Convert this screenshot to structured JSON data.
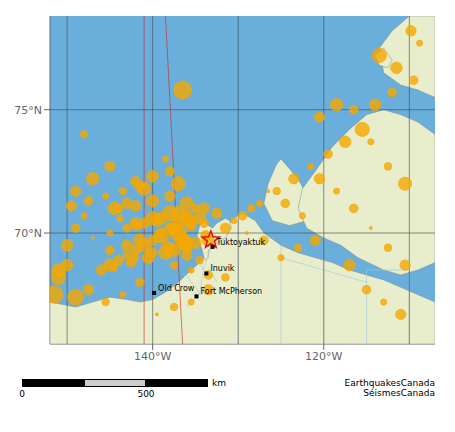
{
  "chart_data": {
    "type": "scatter",
    "color": "#6aaedb",
    "xlim": [
      -152,
      -107
    ],
    "ylim": [
      65.5,
      78.8
    ],
    "xticks": [
      {
        "value": -140,
        "label": "140°W"
      },
      {
        "value": -120,
        "label": "120°W"
      }
    ],
    "yticks": [
      {
        "value": 70,
        "label": "70°N"
      },
      {
        "value": 75,
        "label": "75°N"
      }
    ],
    "series": [
      {
        "type": "polygon",
        "color": "#e8edcb",
        "x": [
          -152,
          -107,
          -107,
          -109,
          -111,
          -113,
          -115,
          -117,
          -119,
          -121,
          -123,
          -125,
          -127,
          -128,
          -129.5,
          -130.5,
          -131.5,
          -132,
          -132.5,
          -133,
          -133.5,
          -134,
          -134.5,
          -135.5,
          -137,
          -138.5,
          -140,
          -141.5,
          -143,
          -145,
          -147,
          -149,
          -152
        ],
        "values": [
          65.5,
          65.5,
          67.2,
          67.5,
          67.8,
          68.1,
          68.3,
          68.5,
          68.8,
          69.0,
          69.2,
          69.5,
          70.0,
          70.5,
          70.8,
          70.6,
          70.2,
          70.0,
          69.8,
          69.6,
          69.3,
          69.0,
          68.8,
          68.5,
          68.0,
          67.6,
          67.3,
          67.2,
          67.3,
          67.4,
          67.2,
          67.0,
          67.2
        ]
      },
      {
        "type": "polygon",
        "color": "#e8edcb",
        "x": [
          -133.5,
          -133.0,
          -132.5,
          -131.5,
          -130.8,
          -131.0,
          -131.5,
          -132.0,
          -132.5,
          -133.0,
          -133.5,
          -134.0,
          -134.5,
          -134.8,
          -134.5,
          -134.2,
          -134.0,
          -133.8,
          -133.5
        ],
        "values": [
          69.3,
          69.4,
          69.6,
          69.8,
          70.2,
          70.5,
          70.6,
          70.5,
          70.4,
          70.2,
          70.3,
          70.5,
          70.3,
          69.9,
          69.6,
          69.3,
          69.0,
          68.9,
          69.0
        ]
      },
      {
        "type": "polygon",
        "color": "#e8edcb",
        "x": [
          -125,
          -123,
          -121.5,
          -122,
          -124,
          -126,
          -127,
          -126.5,
          -125.5
        ],
        "values": [
          73.0,
          72.2,
          71.2,
          70.5,
          70.3,
          70.5,
          71.2,
          72.0,
          72.8
        ]
      },
      {
        "type": "polygon",
        "color": "#e8edcb",
        "x": [
          -107,
          -107,
          -109,
          -111,
          -113,
          -115,
          -117,
          -119,
          -121,
          -122.5,
          -123,
          -122,
          -120,
          -118,
          -116,
          -113,
          -111,
          -109
        ],
        "values": [
          68.8,
          74.0,
          74.5,
          74.8,
          75.0,
          74.8,
          74.2,
          73.5,
          72.5,
          71.8,
          71.0,
          70.2,
          69.8,
          69.5,
          69.0,
          68.5,
          68.3,
          68.5
        ]
      },
      {
        "type": "polygon",
        "color": "#e8edcb",
        "x": [
          -107,
          -107,
          -110,
          -112,
          -113.5,
          -113,
          -111,
          -109
        ],
        "values": [
          75.5,
          78.8,
          78.8,
          78.2,
          77.5,
          76.5,
          76.0,
          75.8
        ]
      },
      {
        "type": "polygon",
        "color": "#e8edcb",
        "x": [
          -112,
          -113,
          -114,
          -113.5,
          -112.5
        ],
        "values": [
          77.0,
          77.5,
          77.2,
          76.8,
          76.7
        ]
      },
      {
        "type": "line",
        "color": "#9ecae1",
        "x": [
          -134.5,
          -134.3,
          -134.1,
          -133.8,
          -133.5,
          -133.2
        ],
        "values": [
          67.5,
          68.0,
          68.5,
          68.8,
          69.1,
          69.4
        ]
      },
      {
        "type": "line",
        "color": "#9ecae1",
        "x": [
          -134.5,
          -135.0,
          -135.5,
          -136.0
        ],
        "values": [
          67.5,
          67.8,
          68.0,
          68.3
        ]
      },
      {
        "type": "line",
        "color": "#9ecae1",
        "x": [
          -134.0,
          -134.5,
          -135.0
        ],
        "values": [
          68.5,
          68.8,
          69.0
        ]
      },
      {
        "type": "line",
        "color": "#9ecae1",
        "x": [
          -132.5,
          -133.0,
          -133.5
        ],
        "values": [
          68.0,
          68.3,
          68.6
        ]
      },
      {
        "type": "line",
        "color": "#9ecae1",
        "x": [
          -134.9,
          -135.5,
          -136.0
        ],
        "values": [
          67.4,
          67.2,
          67.0
        ]
      },
      {
        "type": "line",
        "color": "#9ecae1",
        "x": [
          -110,
          -110
        ],
        "values": [
          65.5,
          68.5
        ]
      },
      {
        "type": "line",
        "color": "#9ecae1",
        "x": [
          -115,
          -115
        ],
        "values": [
          65.5,
          68.5
        ]
      },
      {
        "type": "line",
        "color": "#9ecae1",
        "x": [
          -120,
          -120
        ],
        "values": [
          65.5,
          69.0
        ]
      },
      {
        "type": "line",
        "color": "#9ecae1",
        "x": [
          -125,
          -125
        ],
        "values": [
          65.5,
          69.5
        ]
      },
      {
        "type": "line",
        "color": "#9ecae1",
        "x": [
          -130,
          -130
        ],
        "values": [
          65.5,
          70.5
        ]
      },
      {
        "type": "line",
        "color": "#9ecae1",
        "x": [
          -110,
          -115
        ],
        "values": [
          68.5,
          68.5
        ]
      },
      {
        "type": "line",
        "color": "#9ecae1",
        "x": [
          -115,
          -120
        ],
        "values": [
          68.0,
          68.5
        ]
      },
      {
        "type": "line",
        "color": "#9ecae1",
        "x": [
          -120,
          -125
        ],
        "values": [
          68.5,
          69.0
        ]
      },
      {
        "type": "line",
        "color": "#444444",
        "x": [
          -152,
          -107
        ],
        "values": [
          70,
          70
        ]
      },
      {
        "type": "line",
        "color": "#444444",
        "x": [
          -152,
          -107
        ],
        "values": [
          75,
          75
        ]
      },
      {
        "type": "line",
        "color": "#444444",
        "x": [
          -150,
          -150
        ],
        "values": [
          65.5,
          78.8
        ]
      },
      {
        "type": "line",
        "color": "#444444",
        "x": [
          -140,
          -140
        ],
        "values": [
          65.5,
          78.8
        ]
      },
      {
        "type": "line",
        "color": "#444444",
        "x": [
          -130,
          -130
        ],
        "values": [
          65.5,
          78.8
        ]
      },
      {
        "type": "line",
        "color": "#444444",
        "x": [
          -120,
          -120
        ],
        "values": [
          65.5,
          78.8
        ]
      },
      {
        "type": "line",
        "color": "#444444",
        "x": [
          -110,
          -110
        ],
        "values": [
          65.5,
          78.8
        ]
      },
      {
        "type": "line",
        "color": "#cc2222",
        "x": [
          -141.0,
          -141.0
        ],
        "values": [
          65.5,
          78.8
        ]
      },
      {
        "type": "line",
        "color": "#cc2222",
        "x": [
          -136.5,
          -138.5
        ],
        "values": [
          65.5,
          78.8
        ]
      },
      {
        "type": "scatter",
        "marker": "circle",
        "color": "#f5a800",
        "x": [
          -136.5,
          -148.0,
          -138.5,
          -137.0,
          -141.0,
          -143.0,
          -144.5,
          -138.0,
          -140.0,
          -142.0,
          -135.5,
          -134.0,
          -137.0,
          -139.0,
          -141.5,
          -143.0,
          -145.0,
          -138.5,
          -140.5,
          -142.5,
          -144.5,
          -136.5,
          -135.0,
          -138.0,
          -140.0,
          -142.0,
          -144.0,
          -136.0,
          -134.0,
          -137.0,
          -139.0,
          -141.0,
          -143.0,
          -145.0,
          -147.0,
          -138.0,
          -140.0,
          -142.0,
          -137.5,
          -136.0,
          -134.5,
          -150.0,
          -149.0,
          -148.0,
          -120.5,
          -118.5,
          -116.5,
          -114.5,
          -112.5,
          -110.5,
          -120.5,
          -118.5,
          -116.5,
          -114.5,
          -112.5,
          -110.5,
          -122.5,
          -124.5,
          -126.5,
          -128.5,
          -130.5,
          -132.5,
          -111.5,
          -113.5,
          -109.5,
          -108.8,
          -109.8,
          -149.0,
          -147.5,
          -145.5,
          -143.5,
          -141.5,
          -139.5,
          -137.5,
          -135.5,
          -133.5,
          -131.5,
          -151.0,
          -150.0,
          -149.0,
          -147.0,
          -145.0,
          -136.0,
          -135.0,
          -137.0,
          -138.0,
          -139.0,
          -140.0,
          -141.0,
          -142.0,
          -143.0,
          -144.0,
          -145.0,
          -146.0,
          -121.0,
          -123.0,
          -125.0,
          -127.0,
          -129.0,
          -117.0,
          -115.0,
          -113.0,
          -111.0,
          -115.5,
          -117.5,
          -119.5,
          -121.5,
          -123.5,
          -125.5,
          -127.5,
          -129.5,
          -131.5,
          -133.5,
          -112.0,
          -114.0,
          -141.5,
          -143.5,
          -145.5,
          -147.5,
          -149.5,
          -137.5,
          -135.5,
          -133.5,
          -136.0,
          -137.5,
          -139.5,
          -141.8,
          -143.8,
          -135.8,
          -134.5,
          -133.8,
          -136.2,
          -138.2,
          -140.2,
          -142.2,
          -151.5,
          -151.0
        ],
        "values": [
          75.8,
          74.0,
          73.0,
          72.0,
          71.8,
          71.2,
          71.0,
          70.8,
          70.6,
          70.4,
          70.3,
          70.4,
          70.0,
          69.9,
          69.7,
          69.5,
          69.3,
          69.2,
          69.0,
          68.8,
          68.6,
          69.7,
          69.6,
          71.5,
          71.3,
          71.1,
          71.0,
          71.2,
          71.0,
          70.8,
          70.6,
          70.4,
          70.2,
          70.0,
          69.8,
          72.5,
          72.3,
          72.1,
          69.3,
          69.1,
          68.9,
          69.5,
          70.2,
          70.7,
          74.7,
          75.2,
          75.0,
          73.7,
          72.7,
          72.0,
          72.2,
          71.7,
          71.0,
          70.2,
          69.4,
          68.7,
          70.7,
          71.2,
          71.7,
          71.0,
          70.5,
          70.8,
          76.7,
          77.2,
          76.2,
          77.7,
          78.2,
          67.4,
          67.7,
          67.2,
          67.5,
          68.0,
          66.7,
          67.0,
          67.2,
          67.7,
          68.2,
          68.2,
          68.7,
          71.7,
          72.2,
          72.7,
          70.7,
          71.0,
          70.4,
          70.2,
          70.0,
          69.7,
          69.5,
          69.3,
          69.1,
          68.9,
          68.7,
          68.5,
          69.7,
          69.4,
          69.0,
          69.7,
          70.0,
          68.7,
          67.7,
          67.2,
          66.7,
          74.2,
          73.7,
          73.2,
          72.7,
          72.2,
          71.7,
          71.2,
          70.7,
          70.2,
          69.7,
          75.7,
          75.2,
          71.9,
          71.7,
          71.5,
          71.3,
          71.1,
          68.7,
          68.5,
          68.3,
          69.4,
          70.15,
          70.5,
          70.3,
          70.6,
          70.5,
          70.6,
          69.9,
          69.6,
          69.4,
          69.2,
          69.0,
          67.5,
          68.5
        ],
        "sizes": [
          5.8,
          3.0,
          2.8,
          4.5,
          4.2,
          3.5,
          4.0,
          4.8,
          4.3,
          3.8,
          3.5,
          3.2,
          5.2,
          4.7,
          4.1,
          3.6,
          3.2,
          4.4,
          3.9,
          3.4,
          3.0,
          4.6,
          3.8,
          3.5,
          4.0,
          3.6,
          3.2,
          4.2,
          3.7,
          4.5,
          3.9,
          3.5,
          3.1,
          2.8,
          2.5,
          3.3,
          3.8,
          3.4,
          4.0,
          3.5,
          3.0,
          3.8,
          3.2,
          2.8,
          3.5,
          4.0,
          3.2,
          2.8,
          3.0,
          4.2,
          3.5,
          2.8,
          3.2,
          2.5,
          3.0,
          3.5,
          2.8,
          3.2,
          2.5,
          3.0,
          2.8,
          3.5,
          3.8,
          4.5,
          3.2,
          2.8,
          3.5,
          5.0,
          3.5,
          3.0,
          2.8,
          3.2,
          2.5,
          3.0,
          2.8,
          3.5,
          3.0,
          4.5,
          3.8,
          3.5,
          4.0,
          3.5,
          3.8,
          3.2,
          4.0,
          3.5,
          3.0,
          3.5,
          4.0,
          3.5,
          3.0,
          3.5,
          4.0,
          3.5,
          3.5,
          3.0,
          2.8,
          3.2,
          2.5,
          3.8,
          3.2,
          2.8,
          3.5,
          4.5,
          3.8,
          3.2,
          2.8,
          3.5,
          3.0,
          2.8,
          3.2,
          3.5,
          4.0,
          3.2,
          3.8,
          3.5,
          3.0,
          2.8,
          3.2,
          3.5,
          3.0,
          2.8,
          3.2,
          3.6,
          4.1,
          3.7,
          3.3,
          2.9,
          4.3,
          3.9,
          3.4,
          4.8,
          4.2,
          3.7,
          3.3,
          5.5,
          4.2
        ]
      },
      {
        "type": "scatter",
        "marker": "star",
        "color": "#dd1111",
        "x": [
          -133.2
        ],
        "values": [
          69.72
        ]
      },
      {
        "type": "scatter",
        "marker": "square",
        "color": "#000000",
        "x": [
          -133.0,
          -133.72,
          -139.83,
          -134.88
        ],
        "values": [
          69.44,
          68.36,
          67.57,
          67.43
        ],
        "labels": [
          "Tuktoyaktuk",
          "Inuvik",
          "Old Crow",
          "Fort McPherson"
        ]
      }
    ],
    "scale_bar": {
      "ticks": [
        0,
        500
      ],
      "unit": "km",
      "colors": [
        "#000000",
        "#cccccc",
        "#000000"
      ]
    },
    "annotations": [
      {
        "text": "EarthquakesCanada\nSéismesCanada"
      }
    ]
  }
}
